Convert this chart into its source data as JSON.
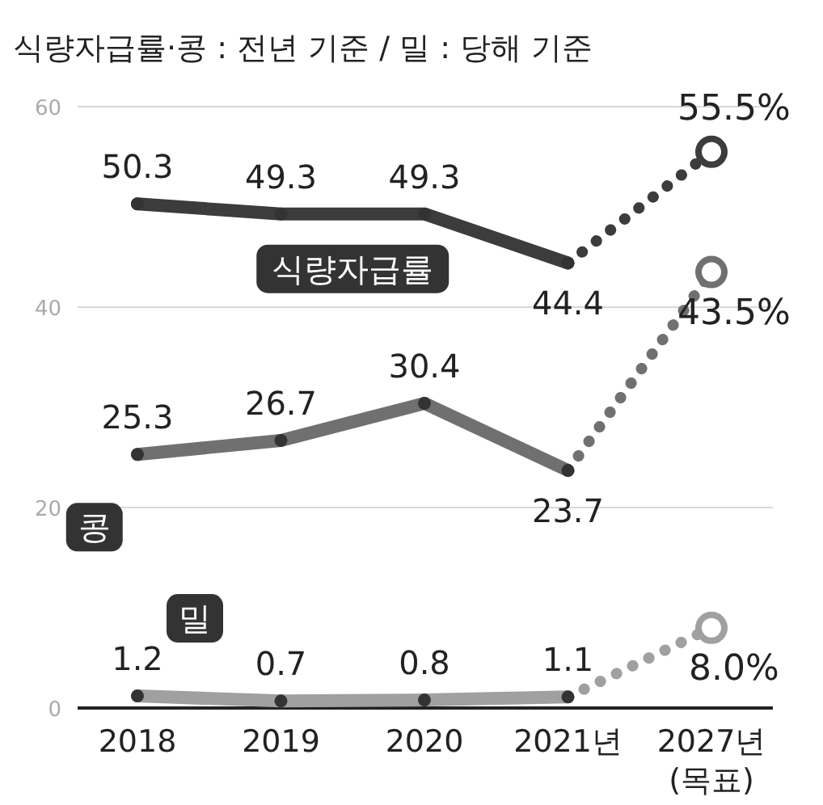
{
  "chart_data": {
    "type": "line",
    "title": "식량자급률·콩 : 전년 기준 / 밀 : 당해 기준",
    "categories": [
      "2018",
      "2019",
      "2020",
      "2021년",
      "2027년 (목표)"
    ],
    "ylim": [
      0,
      60
    ],
    "yticks": [
      0,
      20,
      40,
      60
    ],
    "grid": "y",
    "marker": "circle",
    "series": [
      {
        "name": "식량자급률",
        "color": "#3c3c3c",
        "values": [
          50.3,
          49.3,
          49.3,
          44.4,
          null
        ],
        "value_labels": [
          "50.3",
          "49.3",
          "49.3",
          "44.4",
          null
        ],
        "line_style": "solid"
      },
      {
        "name": "콩",
        "color": "#707070",
        "values": [
          25.3,
          26.7,
          30.4,
          23.7,
          null
        ],
        "value_labels": [
          "25.3",
          "26.7",
          "30.4",
          "23.7",
          null
        ],
        "line_style": "solid"
      },
      {
        "name": "밀",
        "color": "#a0a0a0",
        "values": [
          1.2,
          0.7,
          0.8,
          1.1,
          null
        ],
        "value_labels": [
          "1.2",
          "0.7",
          "0.8",
          "1.1",
          null
        ],
        "line_style": "solid"
      },
      {
        "color": "#3c3c3c",
        "values": [
          null,
          null,
          null,
          44.4,
          55.5
        ],
        "value_labels": [
          null,
          null,
          null,
          null,
          "55.5%"
        ],
        "line_style": "dotted"
      },
      {
        "color": "#707070",
        "values": [
          null,
          null,
          null,
          23.7,
          43.5
        ],
        "value_labels": [
          null,
          null,
          null,
          null,
          "43.5%"
        ],
        "line_style": "dotted"
      },
      {
        "color": "#a0a0a0",
        "values": [
          null,
          null,
          null,
          1.1,
          8.0
        ],
        "value_labels": [
          null,
          null,
          null,
          null,
          "8.0%"
        ],
        "line_style": "dotted"
      }
    ]
  }
}
